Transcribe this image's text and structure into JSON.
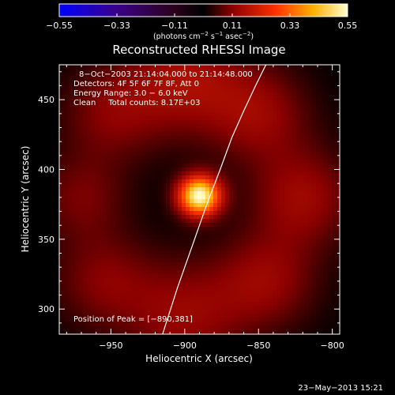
{
  "chart_data": {
    "type": "heatmap",
    "title": "Reconstructed RHESSI Image",
    "xlabel": "Heliocentric X (arcsec)",
    "ylabel": "Heliocentric Y (arcsec)",
    "xlim": [
      -985,
      -795
    ],
    "ylim": [
      282,
      475
    ],
    "x_ticks": [
      -950,
      -900,
      -850,
      -800
    ],
    "y_ticks": [
      300,
      350,
      400,
      450
    ],
    "x_tick_labels": [
      "−950",
      "−900",
      "−850",
      "−800"
    ],
    "y_tick_labels": [
      "300",
      "350",
      "400",
      "450"
    ],
    "grid": false,
    "colorbar": {
      "min": -0.55,
      "max": 0.55,
      "ticks": [
        -0.55,
        -0.33,
        -0.11,
        0.11,
        0.33,
        0.55
      ],
      "tick_labels": [
        "−0.55",
        "−0.33",
        "−0.11",
        "0.11",
        "0.33",
        "0.55"
      ],
      "unit_prefix": "(photons cm",
      "unit_exp1": "−2",
      "unit_mid": " s",
      "unit_exp2": "−1",
      "unit_mid2": " asec",
      "unit_exp3": "−2",
      "unit_suffix": ")"
    },
    "peak": {
      "x": -890,
      "y": 381
    },
    "source_components": [
      {
        "x": -890,
        "y": 381,
        "amp": 0.55,
        "sigma": 10
      },
      {
        "x": -900,
        "y": 465,
        "amp": 0.14,
        "sigma": 28
      },
      {
        "x": -850,
        "y": 440,
        "amp": 0.12,
        "sigma": 25
      },
      {
        "x": -950,
        "y": 440,
        "amp": 0.1,
        "sigma": 25
      },
      {
        "x": -970,
        "y": 380,
        "amp": 0.09,
        "sigma": 22
      },
      {
        "x": -955,
        "y": 320,
        "amp": 0.1,
        "sigma": 25
      },
      {
        "x": -900,
        "y": 295,
        "amp": 0.12,
        "sigma": 28
      },
      {
        "x": -845,
        "y": 320,
        "amp": 0.12,
        "sigma": 25
      },
      {
        "x": -820,
        "y": 380,
        "amp": 0.13,
        "sigma": 25
      }
    ],
    "limb_curve": {
      "x": [
        -915,
        -905,
        -895,
        -885,
        -876,
        -868,
        -860,
        -852,
        -845
      ],
      "y": [
        282,
        315,
        345,
        375,
        400,
        423,
        442,
        460,
        475
      ]
    },
    "annotations": [
      "8−Oct−2003 21:14:04.000 to 21:14:48.000",
      "Detectors: 4F 5F 6F 7F 8F, Att 0",
      "Energy Range: 3.0 − 6.0 keV",
      "Clean     Total counts: 8.17E+03"
    ],
    "peak_label": "Position of Peak = [−890,381]"
  },
  "footer": {
    "timestamp": "23−May−2013 15:21"
  }
}
